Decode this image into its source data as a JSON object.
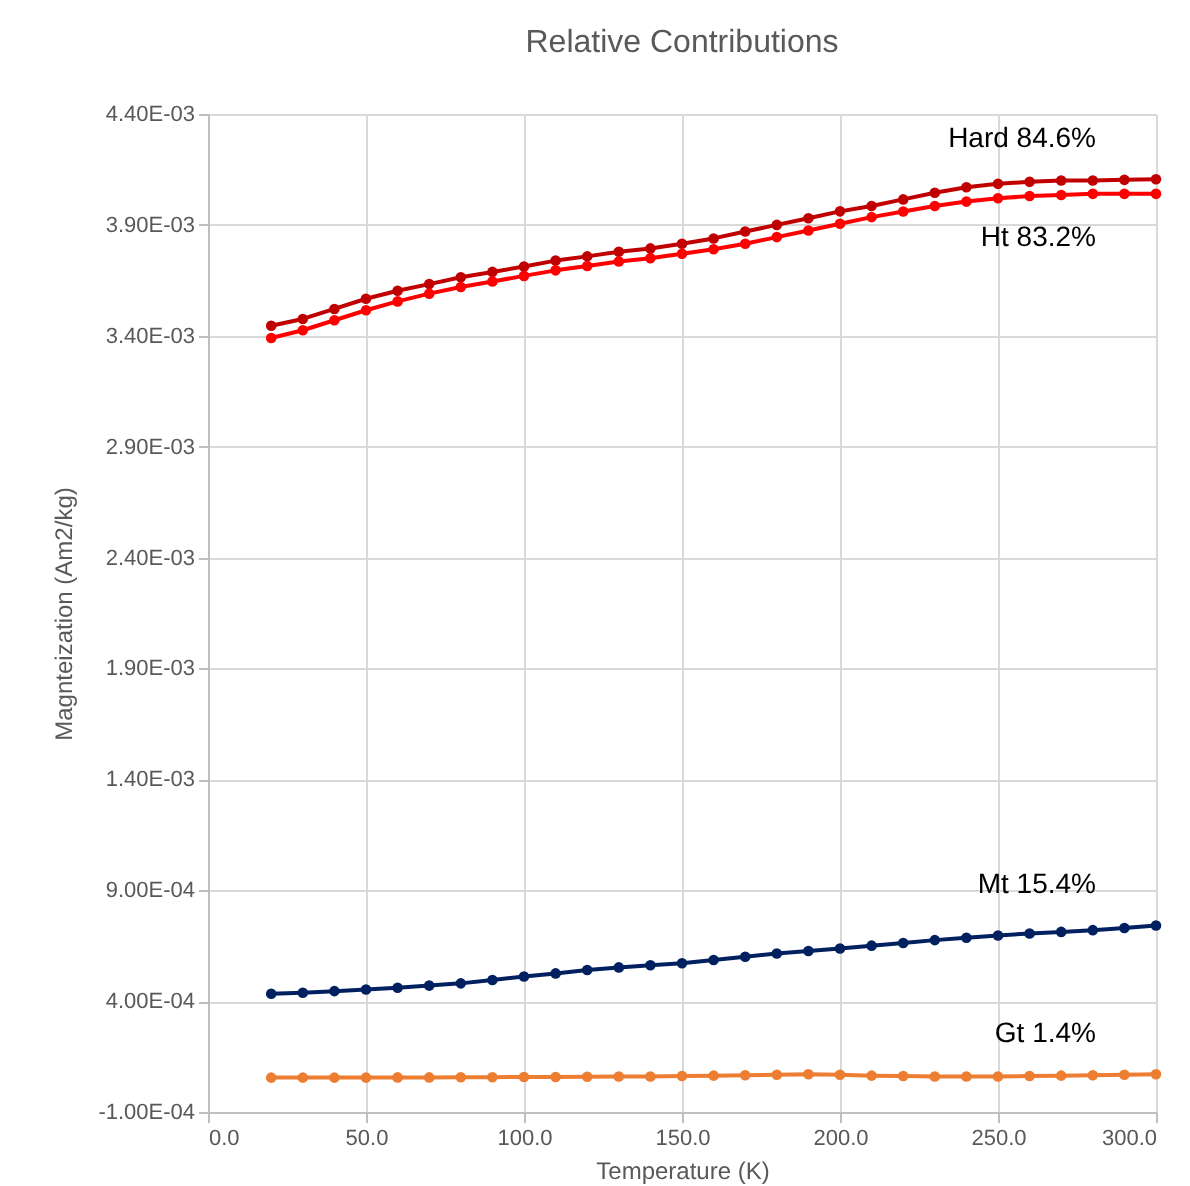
{
  "chart_data": {
    "type": "line",
    "title": "Relative Contributions",
    "xlabel": "Temperature (K)",
    "ylabel": "Magnteization (Am2/kg)",
    "x": [
      20,
      30,
      40,
      50,
      60,
      70,
      80,
      90,
      100,
      110,
      120,
      130,
      140,
      150,
      160,
      170,
      180,
      190,
      200,
      210,
      220,
      230,
      240,
      250,
      260,
      270,
      280,
      290,
      300
    ],
    "series": [
      {
        "name": "Hard 84.6%",
        "color": "#c00000",
        "values": [
          0.003445,
          0.003476,
          0.003521,
          0.003567,
          0.003603,
          0.003633,
          0.003664,
          0.003688,
          0.003712,
          0.003739,
          0.003758,
          0.003779,
          0.003794,
          0.003815,
          0.003839,
          0.00387,
          0.0039,
          0.00393,
          0.003961,
          0.003985,
          0.004015,
          0.004045,
          0.00407,
          0.004085,
          0.004094,
          0.0041,
          0.0041,
          0.004103,
          0.004106
        ]
      },
      {
        "name": "Ht 83.2%",
        "color": "#ff0000",
        "values": [
          0.00339,
          0.003425,
          0.00347,
          0.003515,
          0.003555,
          0.00359,
          0.00362,
          0.003645,
          0.00367,
          0.003695,
          0.003715,
          0.003735,
          0.00375,
          0.00377,
          0.00379,
          0.003815,
          0.003845,
          0.003875,
          0.003905,
          0.003935,
          0.00396,
          0.003985,
          0.004005,
          0.00402,
          0.00403,
          0.004035,
          0.00404,
          0.00404,
          0.00404
        ]
      },
      {
        "name": "Mt 15.4%",
        "color": "#002060",
        "values": [
          0.000433,
          0.000438,
          0.000445,
          0.000452,
          0.00046,
          0.00047,
          0.00048,
          0.000495,
          0.000511,
          0.000525,
          0.00054,
          0.000552,
          0.000562,
          0.000571,
          0.000585,
          0.0006,
          0.000615,
          0.000626,
          0.000637,
          0.00065,
          0.000662,
          0.000675,
          0.000686,
          0.000696,
          0.000705,
          0.000712,
          0.00072,
          0.00073,
          0.000741
        ]
      },
      {
        "name": "Gt 1.4%",
        "color": "#ed7d31",
        "values": [
          5.5e-05,
          5.5e-05,
          5.5e-05,
          5.5e-05,
          5.6e-05,
          5.6e-05,
          5.7e-05,
          5.7e-05,
          5.8e-05,
          5.8e-05,
          5.9e-05,
          6e-05,
          6e-05,
          6.2e-05,
          6.4e-05,
          6.6e-05,
          6.8e-05,
          7e-05,
          6.8e-05,
          6.4e-05,
          6.2e-05,
          6e-05,
          6e-05,
          6e-05,
          6.2e-05,
          6.4e-05,
          6.6e-05,
          6.8e-05,
          7e-05
        ]
      }
    ],
    "xlim": [
      0,
      300
    ],
    "xticks": [
      {
        "value": 0,
        "label": "0.0"
      },
      {
        "value": 50,
        "label": "50.0"
      },
      {
        "value": 100,
        "label": "100.0"
      },
      {
        "value": 150,
        "label": "150.0"
      },
      {
        "value": 200,
        "label": "200.0"
      },
      {
        "value": 250,
        "label": "250.0"
      },
      {
        "value": 300,
        "label": "300.0"
      }
    ],
    "ylim": [
      -0.0001,
      0.0044
    ],
    "yticks": [
      {
        "value": -0.0001,
        "label": "-1.00E-04"
      },
      {
        "value": 0.0004,
        "label": "4.00E-04"
      },
      {
        "value": 0.0009,
        "label": "9.00E-04"
      },
      {
        "value": 0.0014,
        "label": "1.40E-03"
      },
      {
        "value": 0.0019,
        "label": "1.90E-03"
      },
      {
        "value": 0.0024,
        "label": "2.40E-03"
      },
      {
        "value": 0.0029,
        "label": "2.90E-03"
      },
      {
        "value": 0.0034,
        "label": "3.40E-03"
      },
      {
        "value": 0.0039,
        "label": "3.90E-03"
      },
      {
        "value": 0.0044,
        "label": "4.40E-03"
      }
    ],
    "grid": true,
    "legend": false,
    "marker": "circle",
    "line_style": "solid"
  }
}
